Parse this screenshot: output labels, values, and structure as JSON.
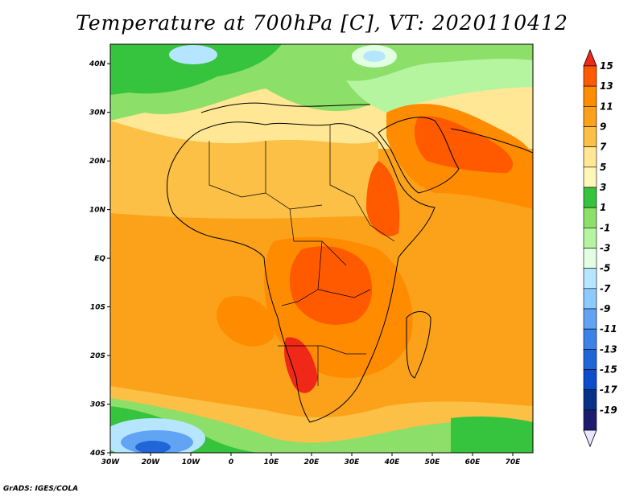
{
  "title": "Temperature at 700hPa [C], VT: 2020110412",
  "credit": "GrADS: IGES/COLA",
  "map": {
    "lat_labels": [
      "40N",
      "30N",
      "20N",
      "10N",
      "EQ",
      "10S",
      "20S",
      "30S",
      "40S"
    ],
    "lon_labels": [
      "30W",
      "20W",
      "10W",
      "0",
      "10E",
      "20E",
      "30E",
      "40E",
      "50E",
      "60E",
      "70E"
    ],
    "lat_range": [
      -40,
      44
    ],
    "lon_range": [
      -30,
      75
    ]
  },
  "legend": {
    "labels": [
      "15",
      "13",
      "11",
      "9",
      "7",
      "5",
      "3",
      "1",
      "-1",
      "-3",
      "-5",
      "-7",
      "-9",
      "-11",
      "-13",
      "-15",
      "-17",
      "-19"
    ],
    "colors": [
      "#f02818",
      "#ff5a00",
      "#ff8c00",
      "#fba21a",
      "#fbc045",
      "#ffe795",
      "#fff6b8",
      "#36c33d",
      "#8cdf69",
      "#b6f5a0",
      "#e2ffe2",
      "#b6e6ff",
      "#8ccaff",
      "#61a4f4",
      "#3b83e8",
      "#2066d8",
      "#0d4ccb",
      "#08318a",
      "#1c1c6e",
      "#e6e6ff"
    ]
  }
}
